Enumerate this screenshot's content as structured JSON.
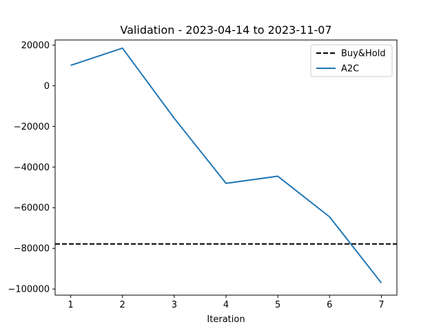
{
  "chart_data": {
    "type": "line",
    "title": "Validation - 2023-04-14 to 2023-11-07",
    "xlabel": "Iteration",
    "ylabel": "",
    "xlim": [
      0.7,
      7.3
    ],
    "ylim": [
      -103000,
      22500
    ],
    "x_ticks": [
      1,
      2,
      3,
      4,
      5,
      6,
      7
    ],
    "y_ticks": [
      20000,
      0,
      -20000,
      -40000,
      -60000,
      -80000,
      -100000
    ],
    "y_tick_labels": [
      "20000",
      "0",
      "−20000",
      "−40000",
      "−60000",
      "−80000",
      "−100000"
    ],
    "grid": false,
    "legend_position": "top-right",
    "series": [
      {
        "name": "Buy&Hold",
        "style": "dashed",
        "color": "#000000",
        "kind": "horizontal-line",
        "y": -77800
      },
      {
        "name": "A2C",
        "style": "solid",
        "color": "#1f77b4",
        "x": [
          1,
          2,
          3,
          4,
          5,
          6,
          7
        ],
        "y": [
          10000,
          18500,
          -16000,
          -48000,
          -44500,
          -64500,
          -97000
        ]
      }
    ]
  }
}
